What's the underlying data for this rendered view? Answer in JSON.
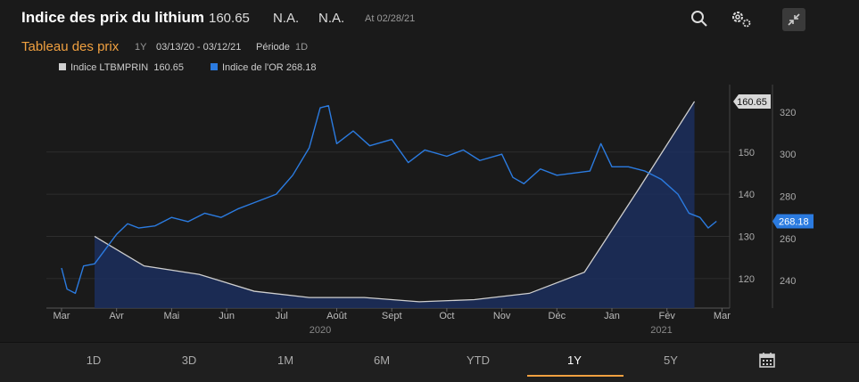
{
  "header": {
    "title": "Indice des prix du lithium",
    "value": "160.65",
    "na1": "N.A.",
    "na2": "N.A.",
    "as_of": "At 02/28/21"
  },
  "subheader": {
    "label": "Tableau des prix",
    "range": "1Y",
    "dates": "03/13/20 - 03/12/21",
    "period_label": "Période",
    "period_value": "1D"
  },
  "legend": [
    {
      "name": "Indice LTBMPRIN",
      "value": "160.65",
      "color": "#d0d0d0"
    },
    {
      "name": "Indice de l'OR",
      "value": "268.18",
      "color": "#2b7be0"
    }
  ],
  "buttons": [
    "1D",
    "3D",
    "1M",
    "6M",
    "YTD",
    "1Y",
    "5Y"
  ],
  "active_button": "1Y",
  "chart_data": {
    "type": "line",
    "x_labels": [
      "Mar",
      "Avr",
      "Mai",
      "Jun",
      "Jul",
      "Août",
      "Sept",
      "Oct",
      "Nov",
      "Déc",
      "Jan",
      "Fév",
      "Mar"
    ],
    "year_labels": [
      "2020",
      "2021"
    ],
    "left_axis": {
      "ticks": [
        120,
        130,
        140,
        150
      ],
      "range": [
        113,
        166
      ]
    },
    "right_axis": {
      "ticks": [
        240,
        260,
        280,
        300,
        320
      ],
      "range": [
        227,
        333
      ]
    },
    "series": [
      {
        "name": "Indice LTBMPRIN",
        "axis": "left",
        "style": "area",
        "values": [
          [
            0.6,
            130
          ],
          [
            1.5,
            123
          ],
          [
            2.5,
            121
          ],
          [
            3.5,
            117
          ],
          [
            4.5,
            115.5
          ],
          [
            5.5,
            115.5
          ],
          [
            6.5,
            114.5
          ],
          [
            7.5,
            115
          ],
          [
            8.5,
            116.5
          ],
          [
            9.5,
            121.5
          ],
          [
            10.5,
            141.5
          ],
          [
            11.5,
            162
          ]
        ],
        "last_value": "160.65"
      },
      {
        "name": "Indice de l'OR",
        "axis": "right",
        "style": "line",
        "values": [
          [
            0.0,
            246
          ],
          [
            0.1,
            236
          ],
          [
            0.25,
            234
          ],
          [
            0.4,
            247
          ],
          [
            0.6,
            248
          ],
          [
            0.8,
            255
          ],
          [
            1.0,
            262
          ],
          [
            1.2,
            267
          ],
          [
            1.4,
            265
          ],
          [
            1.7,
            266
          ],
          [
            2.0,
            270
          ],
          [
            2.3,
            268
          ],
          [
            2.6,
            272
          ],
          [
            2.9,
            270
          ],
          [
            3.2,
            274
          ],
          [
            3.5,
            277
          ],
          [
            3.9,
            281
          ],
          [
            4.2,
            290
          ],
          [
            4.5,
            303
          ],
          [
            4.7,
            322
          ],
          [
            4.85,
            323
          ],
          [
            5.0,
            305
          ],
          [
            5.3,
            311
          ],
          [
            5.6,
            304
          ],
          [
            6.0,
            307
          ],
          [
            6.3,
            296
          ],
          [
            6.6,
            302
          ],
          [
            7.0,
            299
          ],
          [
            7.3,
            302
          ],
          [
            7.6,
            297
          ],
          [
            8.0,
            300
          ],
          [
            8.2,
            289
          ],
          [
            8.4,
            286
          ],
          [
            8.7,
            293
          ],
          [
            9.0,
            290
          ],
          [
            9.3,
            291
          ],
          [
            9.6,
            292
          ],
          [
            9.8,
            305
          ],
          [
            10.0,
            294
          ],
          [
            10.3,
            294
          ],
          [
            10.6,
            292
          ],
          [
            10.9,
            288
          ],
          [
            11.2,
            281
          ],
          [
            11.4,
            272
          ],
          [
            11.6,
            270
          ],
          [
            11.75,
            265
          ],
          [
            11.9,
            268.18
          ]
        ],
        "last_value": "268.18"
      }
    ]
  }
}
